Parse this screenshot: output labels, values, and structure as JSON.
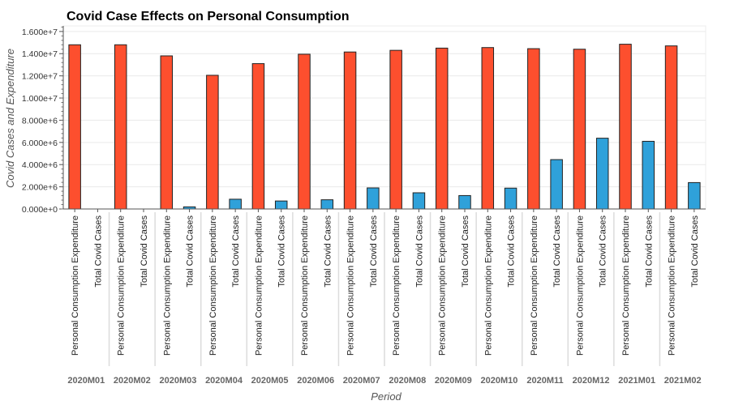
{
  "chart_data": {
    "type": "bar",
    "title": "Covid Case Effects on Personal Consumption",
    "xlabel": "Period",
    "ylabel": "Covid Cases and Expenditure",
    "ylim": [
      0,
      16500000
    ],
    "yticks": [
      {
        "value": 0,
        "label": "0.000e+0"
      },
      {
        "value": 2000000,
        "label": "2.000e+6"
      },
      {
        "value": 4000000,
        "label": "4.000e+6"
      },
      {
        "value": 6000000,
        "label": "6.000e+6"
      },
      {
        "value": 8000000,
        "label": "8.000e+6"
      },
      {
        "value": 10000000,
        "label": "1.000e+7"
      },
      {
        "value": 12000000,
        "label": "1.200e+7"
      },
      {
        "value": 14000000,
        "label": "1.400e+7"
      },
      {
        "value": 16000000,
        "label": "1.600e+7"
      }
    ],
    "categories": [
      "2020M01",
      "2020M02",
      "2020M03",
      "2020M04",
      "2020M05",
      "2020M06",
      "2020M07",
      "2020M08",
      "2020M09",
      "2020M10",
      "2020M11",
      "2020M12",
      "2021M01",
      "2021M02"
    ],
    "series": [
      {
        "name": "Personal Consumption Expenditure",
        "color": "#fd4f2e",
        "values": [
          14800000,
          14800000,
          13800000,
          12050000,
          13100000,
          13950000,
          14150000,
          14300000,
          14500000,
          14550000,
          14450000,
          14400000,
          14850000,
          14700000
        ]
      },
      {
        "name": "Total Covid Cases",
        "color": "#2fa1da",
        "values": [
          0,
          0,
          190000,
          880000,
          720000,
          830000,
          1900000,
          1460000,
          1210000,
          1880000,
          4450000,
          6380000,
          6100000,
          2380000
        ]
      }
    ],
    "grid": "horizontal"
  }
}
